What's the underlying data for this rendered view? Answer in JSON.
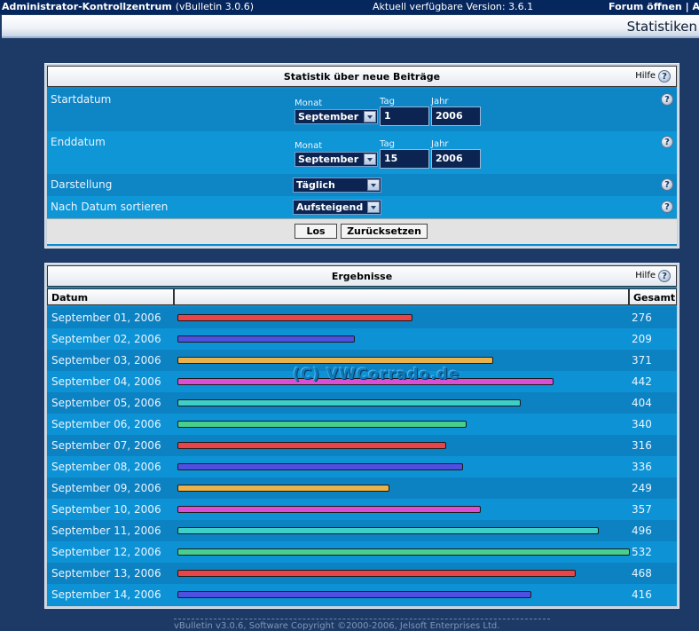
{
  "topbar": {
    "control_panel": "Administrator-Kontrollzentrum",
    "version": "(vBulletin 3.0.6)",
    "available_version": "Aktuell verfügbare Version: 3.6.1",
    "open_forum": "Forum öffnen",
    "separator": "|",
    "logout": "Ab"
  },
  "page": {
    "title": "Statistiken"
  },
  "form": {
    "title": "Statistik über neue Beiträge",
    "help": "Hilfe",
    "start_label": "Startdatum",
    "end_label": "Enddatum",
    "month_label": "Monat",
    "day_label": "Tag",
    "year_label": "Jahr",
    "start_month": "September",
    "start_day": "1",
    "start_year": "2006",
    "end_month": "September",
    "end_day": "15",
    "end_year": "2006",
    "display_label": "Darstellung",
    "display_value": "Täglich",
    "sort_label": "Nach Datum sortieren",
    "sort_value": "Aufsteigend",
    "submit": "Los",
    "reset": "Zurücksetzen"
  },
  "results": {
    "title": "Ergebnisse",
    "help": "Hilfe",
    "col_date": "Datum",
    "col_total": "Gesamt",
    "bar_colors": [
      "#e8444a",
      "#4f4fe0",
      "#e9b24a",
      "#d94fd6",
      "#3fcfc9",
      "#49cf8d"
    ],
    "rows": [
      {
        "date": "September 01, 2006",
        "total": "276"
      },
      {
        "date": "September 02, 2006",
        "total": "209"
      },
      {
        "date": "September 03, 2006",
        "total": "371"
      },
      {
        "date": "September 04, 2006",
        "total": "442"
      },
      {
        "date": "September 05, 2006",
        "total": "404"
      },
      {
        "date": "September 06, 2006",
        "total": "340"
      },
      {
        "date": "September 07, 2006",
        "total": "316"
      },
      {
        "date": "September 08, 2006",
        "total": "336"
      },
      {
        "date": "September 09, 2006",
        "total": "249"
      },
      {
        "date": "September 10, 2006",
        "total": "357"
      },
      {
        "date": "September 11, 2006",
        "total": "496"
      },
      {
        "date": "September 12, 2006",
        "total": "532"
      },
      {
        "date": "September 13, 2006",
        "total": "468"
      },
      {
        "date": "September 14, 2006",
        "total": "416"
      }
    ]
  },
  "watermark": "(C) VWCorrado.de",
  "footer": "vBulletin v3.0.6, Software Copyright ©2000-2006, Jelsoft Enterprises Ltd."
}
